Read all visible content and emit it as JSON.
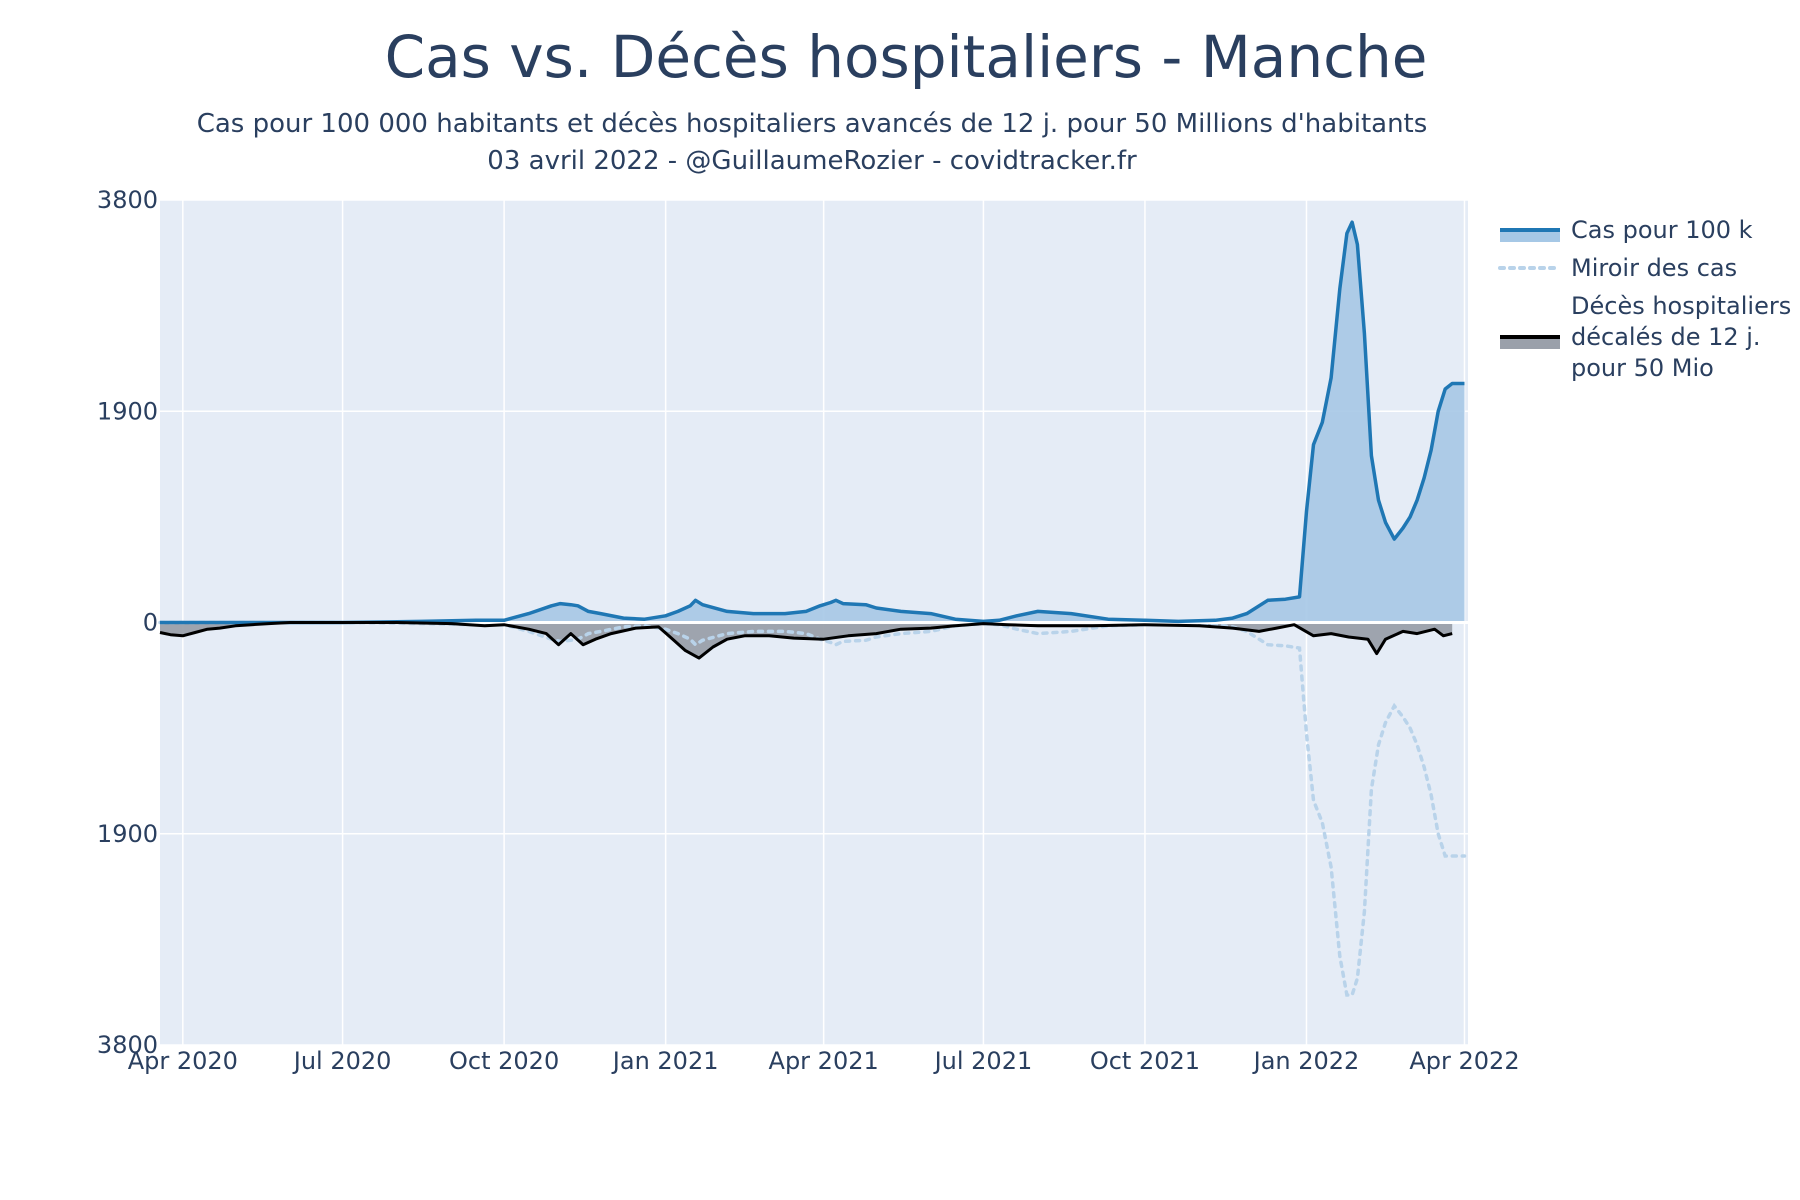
{
  "chart_data": {
    "type": "area",
    "title": "Cas vs. Décès hospitaliers - Manche",
    "subtitle_lines": [
      "Cas pour 100 000 habitants et décès hospitaliers avancés de 12 j. pour 50 Millions d'habitants",
      "03 avril 2022 - @GuillaumeRozier - covidtracker.fr"
    ],
    "y_ticks": [
      {
        "label": "3800",
        "value": 3800
      },
      {
        "label": "1900",
        "value": 1900
      },
      {
        "label": "0",
        "value": 0
      },
      {
        "label": "1900",
        "value": -1900
      },
      {
        "label": "3800",
        "value": -3800
      }
    ],
    "ylim": [
      -3800,
      3800
    ],
    "x_ticks": [
      {
        "label": "Apr 2020",
        "date": "2020-04-01"
      },
      {
        "label": "Jul 2020",
        "date": "2020-07-01"
      },
      {
        "label": "Oct 2020",
        "date": "2020-10-01"
      },
      {
        "label": "Jan 2021",
        "date": "2021-01-01"
      },
      {
        "label": "Apr 2021",
        "date": "2021-04-01"
      },
      {
        "label": "Jul 2021",
        "date": "2021-07-01"
      },
      {
        "label": "Oct 2021",
        "date": "2021-10-01"
      },
      {
        "label": "Jan 2022",
        "date": "2022-01-01"
      },
      {
        "label": "Apr 2022",
        "date": "2022-04-01"
      }
    ],
    "xlim": [
      "2020-03-19",
      "2022-04-03"
    ],
    "grid": true,
    "legend_position": "right",
    "colors": {
      "plot_bg": "#e5ecf6",
      "cases_line": "#1f77b4",
      "cases_fill": "#a6c8e6",
      "mirror_line": "#b9d3ea",
      "deaths_line": "#000000",
      "deaths_fill": "#9aa0aa"
    },
    "series": [
      {
        "name": "Cas pour 100 k",
        "x": [
          "2020-03-19",
          "2020-05-01",
          "2020-07-01",
          "2020-08-15",
          "2020-09-15",
          "2020-10-01",
          "2020-10-15",
          "2020-10-28",
          "2020-11-02",
          "2020-11-08",
          "2020-11-12",
          "2020-11-18",
          "2020-11-25",
          "2020-12-08",
          "2020-12-20",
          "2021-01-01",
          "2021-01-08",
          "2021-01-15",
          "2021-01-18",
          "2021-01-22",
          "2021-02-05",
          "2021-02-20",
          "2021-03-10",
          "2021-03-22",
          "2021-03-30",
          "2021-04-05",
          "2021-04-08",
          "2021-04-12",
          "2021-04-25",
          "2021-05-01",
          "2021-05-15",
          "2021-06-01",
          "2021-06-15",
          "2021-07-01",
          "2021-07-10",
          "2021-07-20",
          "2021-08-01",
          "2021-08-20",
          "2021-09-10",
          "2021-10-01",
          "2021-10-20",
          "2021-11-10",
          "2021-11-20",
          "2021-11-28",
          "2021-12-10",
          "2021-12-20",
          "2021-12-28",
          "2022-01-01",
          "2022-01-05",
          "2022-01-10",
          "2022-01-15",
          "2022-01-20",
          "2022-01-24",
          "2022-01-27",
          "2022-01-30",
          "2022-02-03",
          "2022-02-07",
          "2022-02-11",
          "2022-02-15",
          "2022-02-20",
          "2022-02-25",
          "2022-03-01",
          "2022-03-05",
          "2022-03-09",
          "2022-03-13",
          "2022-03-17",
          "2022-03-21",
          "2022-03-25",
          "2022-03-29",
          "2022-04-01"
        ],
        "values": [
          0,
          0,
          0,
          10,
          20,
          20,
          80,
          150,
          170,
          160,
          150,
          100,
          80,
          40,
          30,
          60,
          100,
          150,
          200,
          160,
          100,
          80,
          80,
          100,
          150,
          180,
          200,
          170,
          160,
          130,
          100,
          80,
          30,
          10,
          20,
          60,
          100,
          80,
          30,
          20,
          10,
          20,
          40,
          80,
          200,
          210,
          230,
          1000,
          1600,
          1800,
          2200,
          3000,
          3500,
          3600,
          3400,
          2600,
          1500,
          1100,
          900,
          750,
          850,
          950,
          1100,
          1300,
          1550,
          1900,
          2100,
          2150,
          2150,
          2150
        ]
      },
      {
        "name": "Miroir des cas",
        "x": [
          "2020-03-19",
          "2020-05-01",
          "2020-07-01",
          "2020-08-15",
          "2020-09-15",
          "2020-10-01",
          "2020-10-15",
          "2020-10-28",
          "2020-11-02",
          "2020-11-08",
          "2020-11-12",
          "2020-11-18",
          "2020-11-25",
          "2020-12-08",
          "2020-12-20",
          "2021-01-01",
          "2021-01-08",
          "2021-01-15",
          "2021-01-18",
          "2021-01-22",
          "2021-02-05",
          "2021-02-20",
          "2021-03-10",
          "2021-03-22",
          "2021-03-30",
          "2021-04-05",
          "2021-04-08",
          "2021-04-12",
          "2021-04-25",
          "2021-05-01",
          "2021-05-15",
          "2021-06-01",
          "2021-06-15",
          "2021-07-01",
          "2021-07-10",
          "2021-07-20",
          "2021-08-01",
          "2021-08-20",
          "2021-09-10",
          "2021-10-01",
          "2021-10-20",
          "2021-11-10",
          "2021-11-20",
          "2021-11-28",
          "2021-12-10",
          "2021-12-20",
          "2021-12-28",
          "2022-01-01",
          "2022-01-05",
          "2022-01-10",
          "2022-01-15",
          "2022-01-20",
          "2022-01-24",
          "2022-01-27",
          "2022-01-30",
          "2022-02-03",
          "2022-02-07",
          "2022-02-11",
          "2022-02-15",
          "2022-02-20",
          "2022-02-25",
          "2022-03-01",
          "2022-03-05",
          "2022-03-09",
          "2022-03-13",
          "2022-03-17",
          "2022-03-21",
          "2022-03-25",
          "2022-03-29",
          "2022-04-01"
        ],
        "values": [
          0,
          0,
          0,
          -10,
          -20,
          -20,
          -80,
          -150,
          -170,
          -160,
          -150,
          -100,
          -80,
          -40,
          -30,
          -60,
          -100,
          -150,
          -200,
          -160,
          -100,
          -80,
          -80,
          -100,
          -150,
          -180,
          -200,
          -170,
          -160,
          -130,
          -100,
          -80,
          -30,
          -10,
          -20,
          -60,
          -100,
          -80,
          -30,
          -20,
          -10,
          -20,
          -40,
          -80,
          -200,
          -210,
          -230,
          -1000,
          -1600,
          -1800,
          -2200,
          -3000,
          -3350,
          -3350,
          -3200,
          -2600,
          -1500,
          -1100,
          -900,
          -750,
          -850,
          -950,
          -1100,
          -1300,
          -1550,
          -1900,
          -2100,
          -2100,
          -2100,
          -2100
        ]
      },
      {
        "name": "Décès hospitaliers décalés de 12 j. pour 50 Mio",
        "x": [
          "2020-03-19",
          "2020-03-25",
          "2020-04-01",
          "2020-04-08",
          "2020-04-15",
          "2020-04-22",
          "2020-05-01",
          "2020-05-10",
          "2020-05-20",
          "2020-06-01",
          "2020-07-01",
          "2020-08-01",
          "2020-09-01",
          "2020-09-20",
          "2020-10-01",
          "2020-10-15",
          "2020-10-25",
          "2020-11-01",
          "2020-11-08",
          "2020-11-15",
          "2020-11-22",
          "2020-12-01",
          "2020-12-15",
          "2020-12-28",
          "2021-01-05",
          "2021-01-12",
          "2021-01-20",
          "2021-01-28",
          "2021-02-05",
          "2021-02-15",
          "2021-03-01",
          "2021-03-15",
          "2021-04-01",
          "2021-04-15",
          "2021-05-01",
          "2021-05-15",
          "2021-06-01",
          "2021-06-15",
          "2021-07-01",
          "2021-07-15",
          "2021-08-01",
          "2021-09-01",
          "2021-10-01",
          "2021-11-01",
          "2021-11-20",
          "2021-12-05",
          "2021-12-15",
          "2021-12-25",
          "2022-01-05",
          "2022-01-15",
          "2022-01-25",
          "2022-02-05",
          "2022-02-10",
          "2022-02-15",
          "2022-02-25",
          "2022-03-05",
          "2022-03-15",
          "2022-03-20",
          "2022-03-25"
        ],
        "values": [
          -90,
          -110,
          -120,
          -90,
          -60,
          -50,
          -30,
          -20,
          -10,
          0,
          0,
          0,
          -10,
          -30,
          -20,
          -60,
          -100,
          -200,
          -100,
          -200,
          -150,
          -100,
          -50,
          -40,
          -150,
          -250,
          -320,
          -220,
          -150,
          -120,
          -120,
          -140,
          -150,
          -120,
          -100,
          -60,
          -50,
          -30,
          -10,
          -20,
          -30,
          -30,
          -20,
          -30,
          -50,
          -80,
          -50,
          -20,
          -120,
          -100,
          -130,
          -150,
          -280,
          -150,
          -80,
          -100,
          -60,
          -120,
          -100
        ]
      }
    ]
  },
  "legend": {
    "items": [
      {
        "lines": [
          "Cas pour 100 k"
        ],
        "kind": "area-line",
        "color": "#1f77b4"
      },
      {
        "lines": [
          "Miroir des cas"
        ],
        "kind": "dotted",
        "color": "#b9d3ea"
      },
      {
        "lines": [
          "Décès hospitaliers",
          "décalés de 12 j.",
          "pour 50 Mio"
        ],
        "kind": "area-line",
        "color": "#000000"
      }
    ]
  }
}
